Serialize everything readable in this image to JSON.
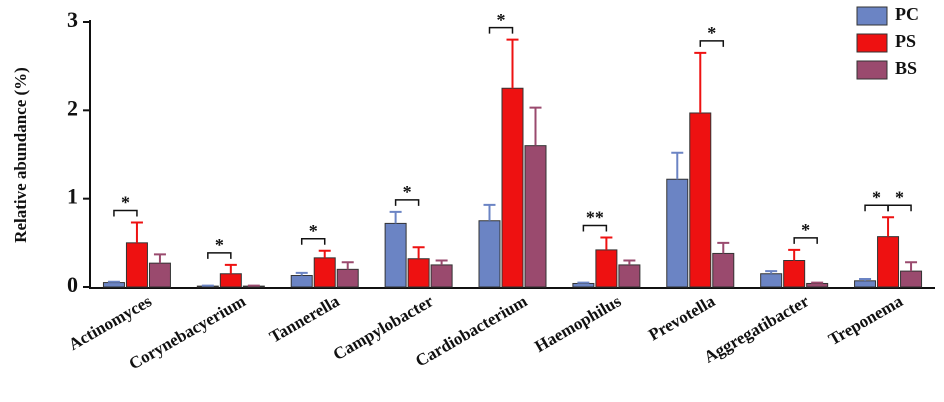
{
  "chart_data": {
    "type": "bar",
    "y_label": "Relative abundance (%)",
    "categories": [
      "Actinomyces",
      "Corynebacyerium",
      "Tannerella",
      "Campylobacter",
      "Cardiobacterium",
      "Haemophilus",
      "Prevotella",
      "Aggregatibacter",
      "Treponema"
    ],
    "series": [
      {
        "name": "PC",
        "color": "#6b84c4",
        "values": [
          0.05,
          0.01,
          0.13,
          0.72,
          0.75,
          0.04,
          1.22,
          0.15,
          0.07
        ],
        "errors": [
          0.01,
          0.005,
          0.03,
          0.13,
          0.18,
          0.01,
          0.3,
          0.03,
          0.02
        ]
      },
      {
        "name": "PS",
        "color": "#ee1111",
        "values": [
          0.5,
          0.15,
          0.33,
          0.32,
          2.25,
          0.42,
          1.97,
          0.3,
          0.57
        ],
        "errors": [
          0.23,
          0.1,
          0.08,
          0.13,
          0.55,
          0.14,
          0.68,
          0.12,
          0.22
        ]
      },
      {
        "name": "BS",
        "color": "#9a4a6e",
        "values": [
          0.27,
          0.01,
          0.2,
          0.25,
          1.6,
          0.25,
          0.38,
          0.04,
          0.18
        ],
        "errors": [
          0.1,
          0.005,
          0.08,
          0.05,
          0.43,
          0.05,
          0.12,
          0.01,
          0.1
        ]
      }
    ],
    "significance": [
      {
        "group": 0,
        "between": [
          0,
          1
        ],
        "label": "*"
      },
      {
        "group": 1,
        "between": [
          0,
          1
        ],
        "label": "*"
      },
      {
        "group": 2,
        "between": [
          0,
          1
        ],
        "label": "*"
      },
      {
        "group": 3,
        "between": [
          0,
          1
        ],
        "label": "*"
      },
      {
        "group": 4,
        "between": [
          0,
          1
        ],
        "label": "*"
      },
      {
        "group": 5,
        "between": [
          0,
          1
        ],
        "label": "**"
      },
      {
        "group": 6,
        "between": [
          1,
          2
        ],
        "label": "*"
      },
      {
        "group": 7,
        "between": [
          1,
          2
        ],
        "label": "*"
      },
      {
        "group": 8,
        "between": [
          0,
          1
        ],
        "label": "*"
      },
      {
        "group": 8,
        "between": [
          1,
          2
        ],
        "label": "*"
      }
    ],
    "ylim": [
      0,
      3
    ],
    "yticks": [
      0,
      1,
      2,
      3
    ],
    "grid": false,
    "legend": "top-right"
  }
}
